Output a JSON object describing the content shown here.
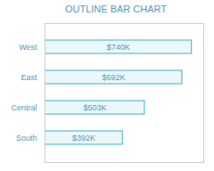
{
  "chart_data": {
    "type": "bar",
    "orientation": "horizontal",
    "title": "OUTLINE BAR CHART",
    "categories": [
      "West",
      "East",
      "Central",
      "South"
    ],
    "values": [
      740,
      692,
      503,
      392
    ],
    "value_labels": [
      "$740K",
      "$692K",
      "$503K",
      "$392K"
    ],
    "data_labels": true,
    "color": "#5bbcd6",
    "xlim": [
      0,
      800
    ],
    "tick_labels": "y",
    "grid": false
  }
}
